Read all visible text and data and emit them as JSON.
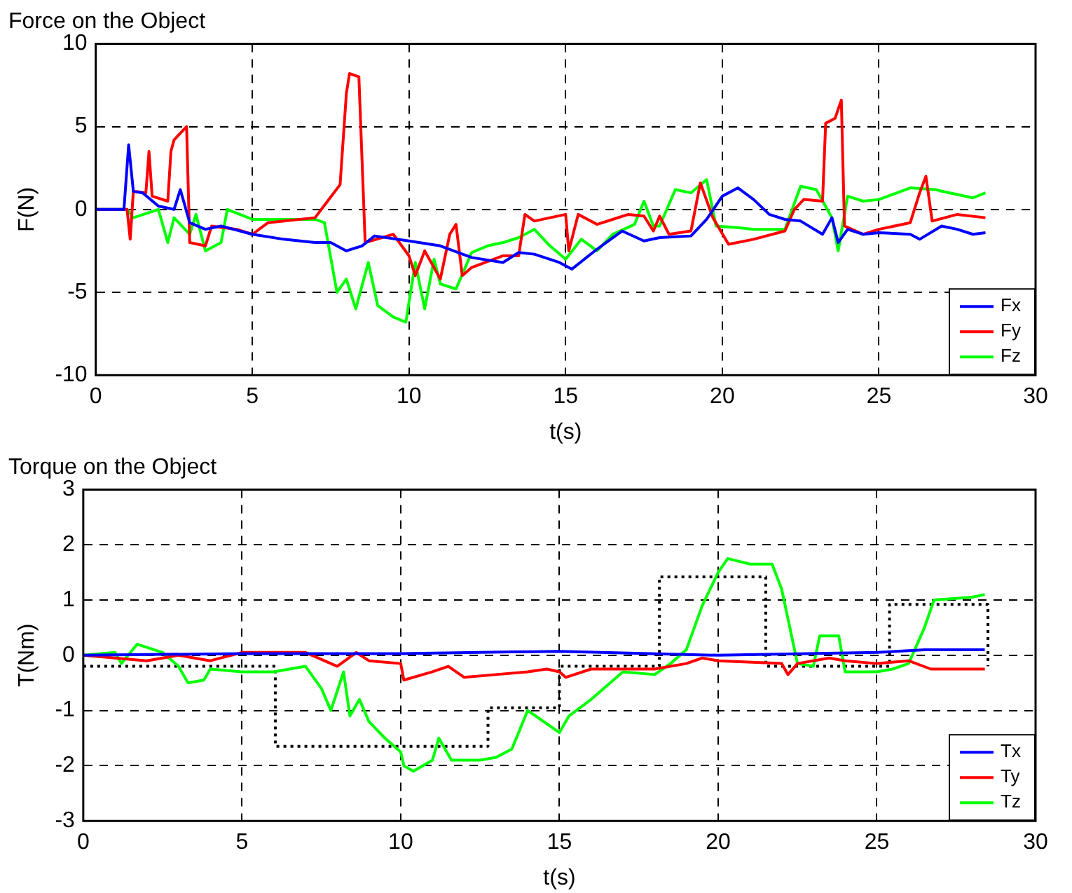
{
  "chart_data": [
    {
      "type": "line",
      "title": "Force on the Object",
      "xlabel": "t(s)",
      "ylabel": "F(N)",
      "xlim": [
        0,
        30
      ],
      "xticks": [
        0,
        5,
        10,
        15,
        20,
        25,
        30
      ],
      "ylim": [
        -10,
        10
      ],
      "yticks": [
        -10,
        -5,
        0,
        5,
        10
      ],
      "grid": true,
      "legend": "bottom right",
      "marker": "none",
      "series": [
        {
          "name": "Fx",
          "color": "#0000ff",
          "x": [
            0,
            0.9,
            1.05,
            1.2,
            1.5,
            2,
            2.5,
            2.7,
            3,
            3.5,
            4,
            5,
            6,
            7,
            7.5,
            8,
            8.5,
            8.9,
            10,
            11,
            12,
            13,
            13.5,
            14,
            14.8,
            15.2,
            16,
            16.8,
            17.5,
            18,
            19,
            19.5,
            20,
            20.5,
            21,
            21.5,
            22,
            22.5,
            23.2,
            23.5,
            23.7,
            24,
            24.5,
            25,
            26,
            26.3,
            27,
            27.5,
            28,
            28.4
          ],
          "values": [
            0,
            0,
            3.9,
            1.1,
            1,
            0.2,
            0,
            1.2,
            -0.8,
            -1.2,
            -1,
            -1.5,
            -1.8,
            -2,
            -2,
            -2.5,
            -2.2,
            -1.6,
            -1.9,
            -2.2,
            -2.9,
            -3.2,
            -2.6,
            -2.7,
            -3.2,
            -3.6,
            -2.4,
            -1.3,
            -1.9,
            -1.7,
            -1.6,
            -0.6,
            0.8,
            1.3,
            0.6,
            -0.3,
            -0.6,
            -0.7,
            -1.5,
            -0.5,
            -2,
            -1.2,
            -1.5,
            -1.4,
            -1.5,
            -1.8,
            -1,
            -1.2,
            -1.5,
            -1.4
          ]
        },
        {
          "name": "Fy",
          "color": "#ff0000",
          "x": [
            0,
            1,
            1.1,
            1.2,
            1.6,
            1.7,
            1.8,
            2.3,
            2.4,
            2.5,
            2.9,
            3,
            3.5,
            3.7,
            4.5,
            5,
            5.5,
            7,
            7.4,
            7.8,
            8,
            8.1,
            8.4,
            8.6,
            9.5,
            10,
            10.2,
            10.5,
            11,
            11.3,
            11.5,
            11.7,
            12,
            13,
            13.5,
            13.7,
            14,
            15,
            15.1,
            15.4,
            16,
            16.5,
            17,
            17.5,
            17.8,
            18,
            18.3,
            19,
            19.3,
            19.7,
            20.2,
            21,
            22,
            22.3,
            22.6,
            23.2,
            23.3,
            23.6,
            23.8,
            23.9,
            24.5,
            25,
            26,
            26.3,
            26.5,
            26.7,
            27.5,
            28.4
          ],
          "values": [
            0,
            0,
            -1.8,
            1.1,
            1,
            3.5,
            0.8,
            0.5,
            3.5,
            4.2,
            5,
            -2,
            -2.2,
            -1,
            -1.2,
            -1.5,
            -0.8,
            -0.5,
            0.5,
            1.5,
            7,
            8.2,
            8,
            -2,
            -1.5,
            -2.8,
            -4,
            -2.5,
            -4.2,
            -1.5,
            -0.9,
            -4,
            -3.5,
            -2.8,
            -2.8,
            -0.3,
            -0.7,
            -0.3,
            -2.5,
            -0.3,
            -0.9,
            -0.6,
            -0.3,
            -0.4,
            -1.3,
            -0.4,
            -1.5,
            -1.3,
            1.6,
            -0.5,
            -2.1,
            -1.8,
            -1.3,
            0,
            0.6,
            0.5,
            5.2,
            5.5,
            6.6,
            -1,
            -1.5,
            -1.2,
            -0.8,
            1,
            2,
            -0.7,
            -0.3,
            -0.5
          ]
        },
        {
          "name": "Fz",
          "color": "#00ff00",
          "x": [
            0,
            1,
            1.2,
            2,
            2.3,
            2.5,
            3,
            3.2,
            3.5,
            4,
            4.2,
            5,
            6,
            7,
            7.3,
            7.7,
            8,
            8.3,
            8.7,
            9,
            9.5,
            9.9,
            10.2,
            10.5,
            10.8,
            11,
            11.5,
            12,
            12.5,
            13,
            13.5,
            14,
            14.5,
            15,
            15.5,
            16,
            16.5,
            17.2,
            17.5,
            17.8,
            18,
            18.5,
            19,
            19.5,
            19.8,
            20.5,
            21,
            22,
            22.5,
            23,
            23.5,
            23.7,
            24,
            24.5,
            25,
            26,
            26.8,
            27,
            28,
            28.4
          ],
          "values": [
            0,
            0,
            -0.5,
            0,
            -2,
            -0.5,
            -1.5,
            -0.3,
            -2.5,
            -2,
            0,
            -0.6,
            -0.6,
            -0.6,
            -0.8,
            -5,
            -4.2,
            -6,
            -3.2,
            -5.8,
            -6.5,
            -6.8,
            -3.2,
            -6,
            -3,
            -4.5,
            -4.8,
            -2.6,
            -2.2,
            -2,
            -1.7,
            -1.2,
            -2.2,
            -3,
            -1.8,
            -2.5,
            -1.5,
            -0.9,
            0.5,
            -1,
            -1,
            1.2,
            1,
            1.8,
            -1,
            -1.1,
            -1.2,
            -1.2,
            1.4,
            1.2,
            -0.5,
            -2.5,
            0.8,
            0.5,
            0.6,
            1.3,
            1.2,
            1.1,
            0.7,
            1
          ]
        }
      ]
    },
    {
      "type": "line",
      "title": "Torque on the Object",
      "xlabel": "t(s)",
      "ylabel": "T(Nm)",
      "xlim": [
        0,
        30
      ],
      "xticks": [
        0,
        5,
        10,
        15,
        20,
        25,
        30
      ],
      "ylim": [
        -3,
        3
      ],
      "yticks": [
        -3,
        -2,
        -1,
        0,
        1,
        2,
        3
      ],
      "grid": true,
      "legend": "bottom right",
      "marker": "none",
      "series": [
        {
          "name": "Tx",
          "color": "#0000ff",
          "x": [
            0,
            5,
            10,
            13.5,
            15,
            20,
            25,
            26.5,
            28.4
          ],
          "values": [
            0,
            0.03,
            0.03,
            0.06,
            0.07,
            0,
            0.05,
            0.1,
            0.1
          ]
        },
        {
          "name": "Ty",
          "color": "#ff0000",
          "x": [
            0,
            2,
            3,
            4,
            5,
            7,
            8,
            8.6,
            9,
            10,
            10.1,
            11,
            11.5,
            12,
            13,
            14,
            14.6,
            15,
            15.2,
            16,
            18,
            19,
            19.5,
            20,
            22,
            22.2,
            22.5,
            23.5,
            24,
            25,
            26,
            26.7,
            28.4
          ],
          "values": [
            0,
            -0.1,
            0,
            -0.1,
            0.05,
            0.05,
            -0.2,
            0.05,
            -0.1,
            -0.15,
            -0.45,
            -0.3,
            -0.2,
            -0.4,
            -0.35,
            -0.3,
            -0.25,
            -0.3,
            -0.4,
            -0.25,
            -0.25,
            -0.15,
            -0.05,
            -0.1,
            -0.15,
            -0.35,
            -0.15,
            -0.05,
            -0.1,
            -0.15,
            -0.1,
            -0.25,
            -0.25
          ]
        },
        {
          "name": "Tz",
          "color": "#00ff00",
          "x": [
            0,
            1,
            1.2,
            1.7,
            2.5,
            3,
            3.3,
            3.8,
            4,
            5,
            6,
            6.5,
            7,
            7.5,
            7.8,
            8.2,
            8.4,
            8.7,
            9,
            9.5,
            10,
            10.1,
            10.4,
            11,
            11.2,
            11.6,
            12.5,
            13,
            13.5,
            14,
            15,
            15.3,
            16,
            17,
            18,
            18.5,
            19,
            19.5,
            20,
            20.3,
            21,
            21.7,
            22,
            22.5,
            23,
            23.2,
            23.8,
            24,
            25,
            25.5,
            26,
            26.5,
            26.8,
            28,
            28.4
          ],
          "values": [
            0,
            0.05,
            -0.15,
            0.2,
            0.05,
            -0.2,
            -0.5,
            -0.45,
            -0.25,
            -0.3,
            -0.3,
            -0.25,
            -0.2,
            -0.6,
            -1,
            -0.3,
            -1.1,
            -0.8,
            -1.2,
            -1.5,
            -1.75,
            -2,
            -2.1,
            -1.9,
            -1.5,
            -1.9,
            -1.9,
            -1.85,
            -1.7,
            -1,
            -1.4,
            -1.1,
            -0.8,
            -0.3,
            -0.35,
            -0.15,
            0.1,
            0.9,
            1.5,
            1.75,
            1.65,
            1.65,
            1.2,
            -0.15,
            -0.2,
            0.35,
            0.35,
            -0.3,
            -0.3,
            -0.25,
            -0.15,
            0.5,
            1,
            1.05,
            1.1
          ]
        },
        {
          "type": "step",
          "color": "#000000",
          "line_style": "dotted",
          "x": [
            0,
            6.05,
            12.75,
            15,
            18.15,
            21.5,
            25.4,
            28.5,
            28.5
          ],
          "values": [
            -0.2,
            -0.2,
            -1.65,
            -0.95,
            -0.2,
            1.42,
            -0.2,
            0.92,
            -0.2
          ]
        }
      ]
    }
  ]
}
